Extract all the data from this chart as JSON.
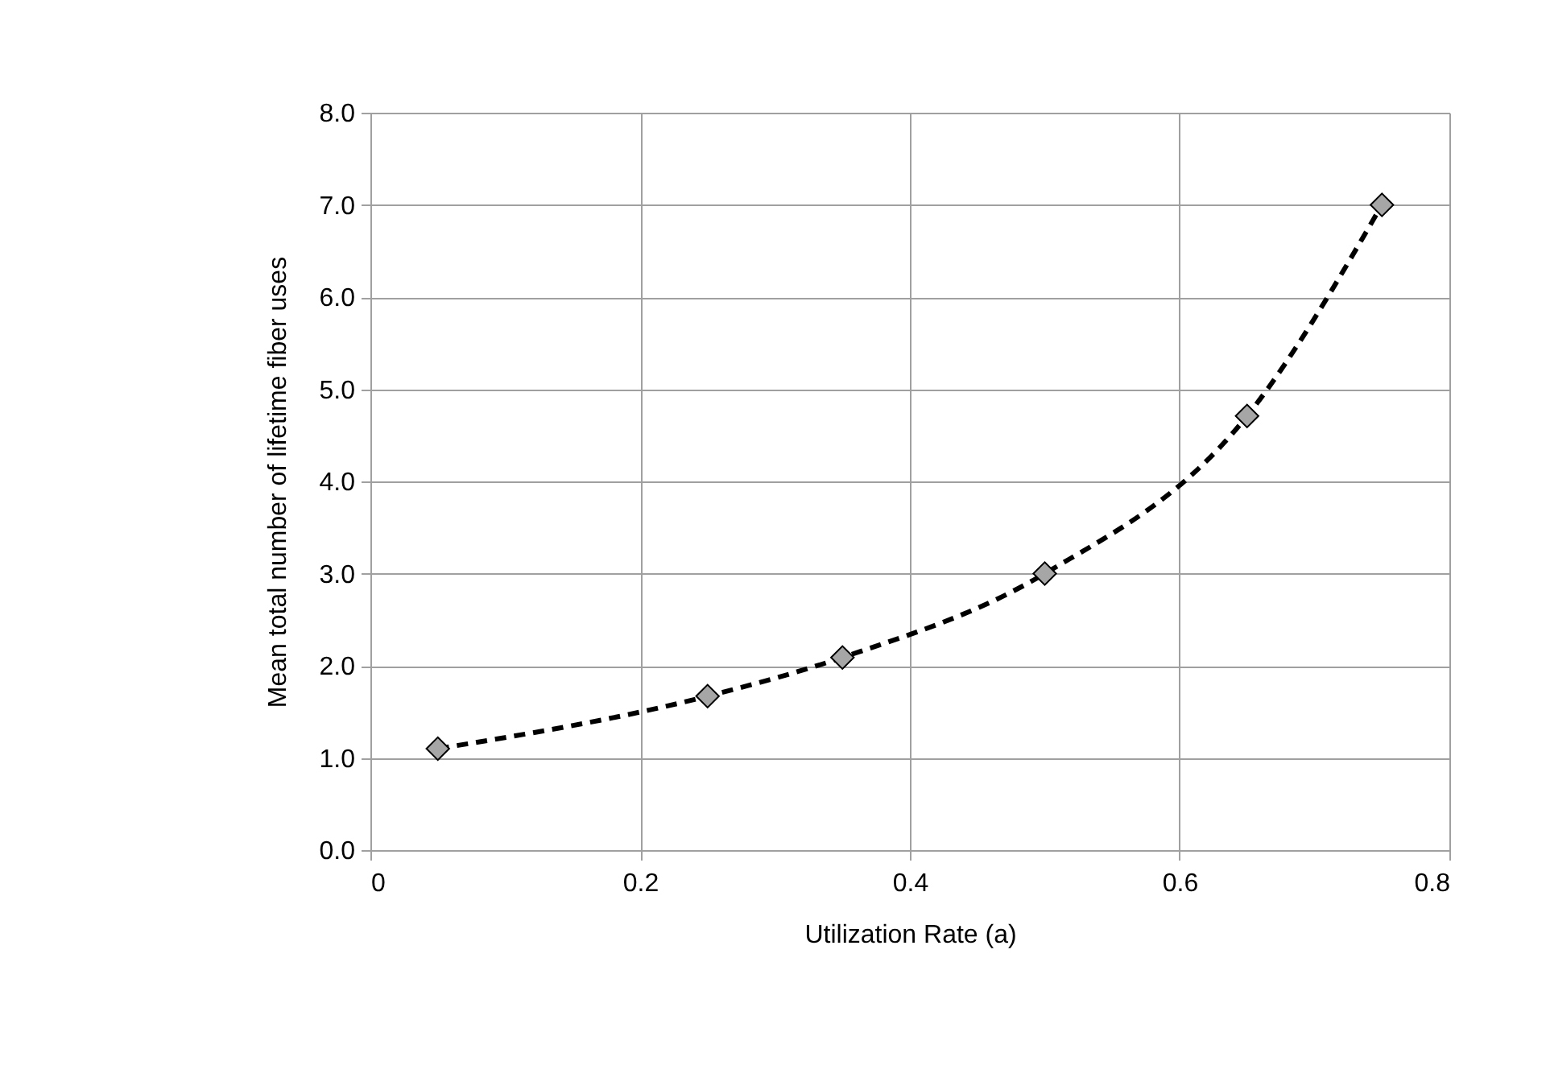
{
  "chart_data": {
    "type": "line",
    "xlabel": "Utilization Rate (a)",
    "ylabel": "Mean total number of lifetime fiber uses",
    "x": [
      0.05,
      0.25,
      0.35,
      0.5,
      0.65,
      0.75
    ],
    "series": [
      {
        "color": "#a6a6a6",
        "values": [
          1.1,
          1.67,
          2.09,
          3.0,
          4.71,
          7.0
        ]
      }
    ],
    "xlim": [
      0,
      0.8
    ],
    "xticks": [
      0,
      0.2,
      0.4,
      0.6,
      0.8
    ],
    "ylim": [
      0,
      8
    ],
    "yticks": [
      {
        "value": 0,
        "label": "0.0"
      },
      {
        "value": 1,
        "label": "1.0"
      },
      {
        "value": 2,
        "label": "2.0"
      },
      {
        "value": 3,
        "label": "3.0"
      },
      {
        "value": 4,
        "label": "4.0"
      },
      {
        "value": 5,
        "label": "5.0"
      },
      {
        "value": 6,
        "label": "6.0"
      },
      {
        "value": 7,
        "label": "7.0"
      },
      {
        "value": 8,
        "label": "8.0"
      }
    ],
    "grid": true,
    "marker": "diamond",
    "line_style": "dashed"
  }
}
